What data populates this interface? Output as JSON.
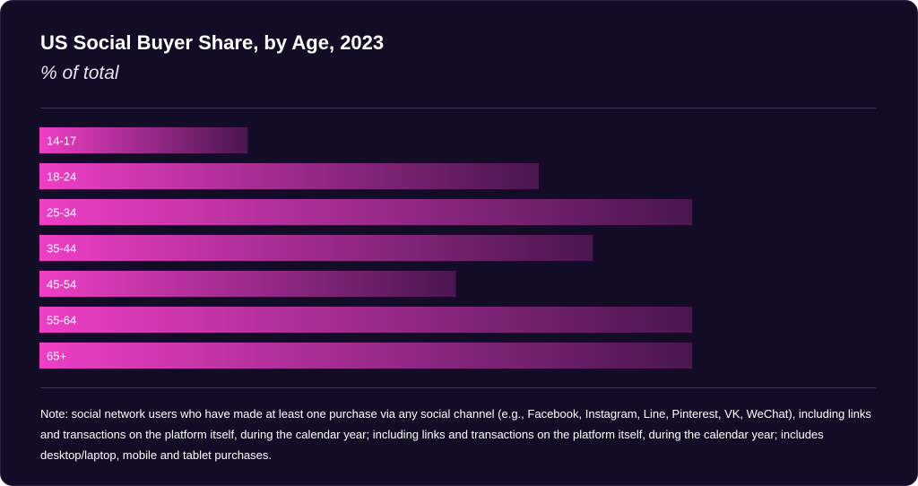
{
  "header": {
    "title": "US Social Buyer Share, by Age, 2023",
    "subtitle": "% of total"
  },
  "note": "Note: social network users who have made at least one purchase via any social channel (e.g., Facebook, Instagram, Line, Pinterest, VK, WeChat), including links and transactions on the platform itself, during the calendar year; including links and transactions on the platform itself, during the calendar year; includes desktop/laptop, mobile and tablet purchases.",
  "colors": {
    "background": "#130c27",
    "bar_start": "#ee3fc6",
    "bar_end": "#4a1650"
  },
  "chart_data": {
    "type": "bar",
    "orientation": "horizontal",
    "title": "US Social Buyer Share, by Age, 2023",
    "subtitle": "% of total",
    "categories": [
      "14-17",
      "18-24",
      "25-34",
      "35-44",
      "45-54",
      "55-64",
      "65+"
    ],
    "values": [
      30.4,
      72.9,
      95.3,
      80.8,
      60.8,
      95.3,
      95.3
    ],
    "xlim": [
      0,
      100
    ],
    "grid": false,
    "legend": "none"
  }
}
